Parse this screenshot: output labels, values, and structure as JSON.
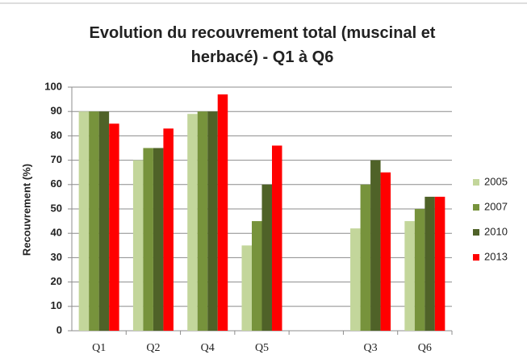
{
  "chart_data": {
    "type": "bar",
    "title": "Evolution du recouvrement total (muscinal et herbacé) - Q1 à Q6",
    "y_label": "Recouvrement (%)",
    "categories": [
      "Q1",
      "Q2",
      "Q4",
      "Q5",
      null,
      "Q3",
      "Q6"
    ],
    "series": [
      {
        "name": "2005",
        "color": "#c3d69b",
        "values": [
          90,
          70,
          89,
          35,
          null,
          42,
          45
        ]
      },
      {
        "name": "2007",
        "color": "#77933c",
        "values": [
          90,
          75,
          90,
          45,
          null,
          60,
          50
        ]
      },
      {
        "name": "2010",
        "color": "#4f6228",
        "values": [
          90,
          75,
          90,
          60,
          null,
          70,
          55
        ]
      },
      {
        "name": "2013",
        "color": "#ff0000",
        "values": [
          85,
          83,
          97,
          76,
          null,
          65,
          55
        ]
      }
    ],
    "ylim": [
      0,
      100
    ],
    "yticks": [
      0,
      10,
      20,
      30,
      40,
      50,
      60,
      70,
      80,
      90,
      100
    ],
    "grid": true,
    "legend": "right"
  }
}
